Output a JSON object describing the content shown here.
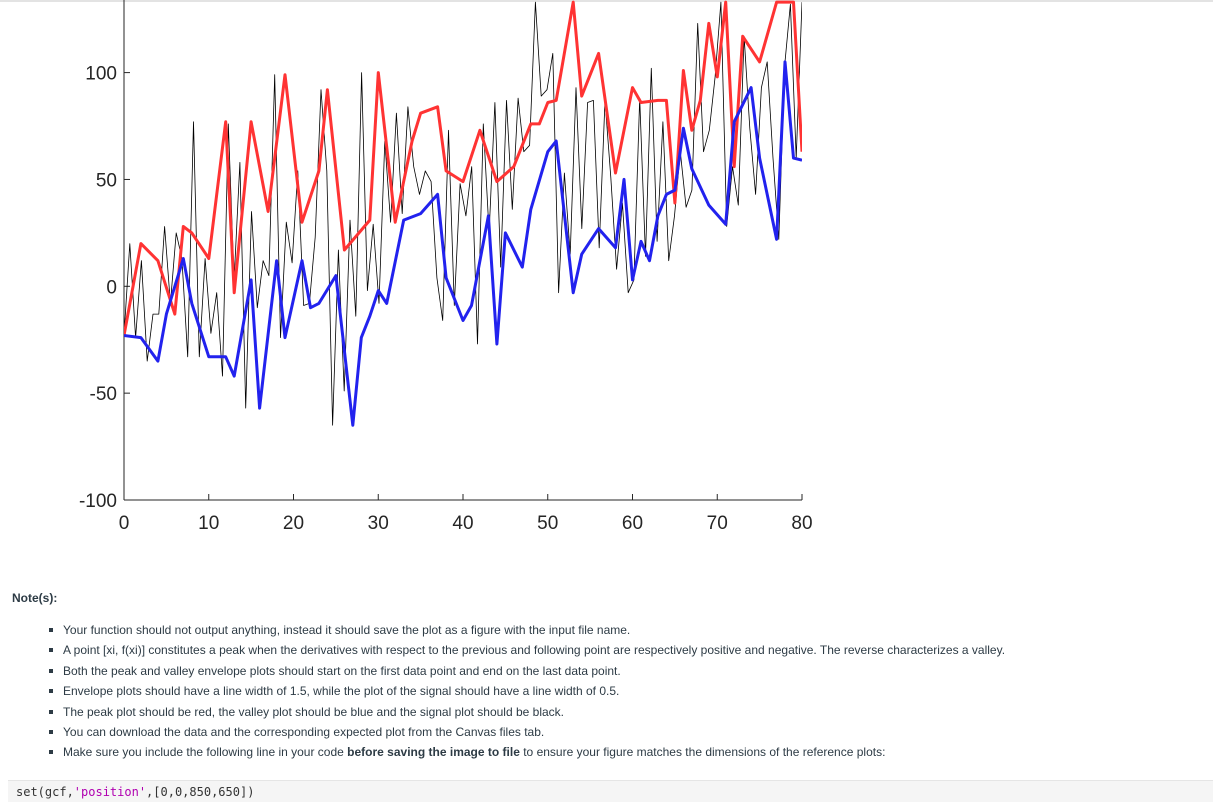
{
  "chart_data": {
    "type": "line",
    "title": "",
    "xlabel": "",
    "ylabel": "",
    "xlim": [
      0,
      80
    ],
    "ylim": [
      -100,
      130
    ],
    "xticks": [
      0,
      10,
      20,
      30,
      40,
      50,
      60,
      70,
      80
    ],
    "yticks": [
      -100,
      -50,
      0,
      50,
      100
    ],
    "x_tick_labels": [
      "0",
      "10",
      "20",
      "30",
      "40",
      "50",
      "60",
      "70",
      "80"
    ],
    "y_tick_labels": [
      "-100",
      "-50",
      "0",
      "50",
      "100"
    ],
    "grid": false,
    "series": [
      {
        "role": "signal",
        "color": "#000000",
        "width": 0.5,
        "values": [
          -23,
          20,
          -24,
          12,
          -35,
          -13,
          -13,
          28,
          -8,
          25,
          13,
          -33,
          77,
          -33,
          13,
          -22,
          -3,
          -42,
          76,
          3,
          58,
          -57,
          35,
          -10,
          12,
          5,
          99,
          -24,
          30,
          11,
          54,
          -9,
          -8,
          23,
          92,
          54,
          -65,
          17,
          -49,
          31,
          -14,
          100,
          -2,
          29,
          -8,
          68,
          30,
          81,
          34,
          84,
          56,
          43,
          54,
          49,
          4,
          -16,
          73,
          -9,
          48,
          33,
          56,
          -27,
          76,
          25,
          86,
          9,
          87,
          36,
          88,
          63,
          66,
          133,
          89,
          92,
          109,
          -3,
          53,
          15,
          93,
          27,
          86,
          87,
          18,
          87,
          51,
          8,
          39,
          -3,
          3,
          88,
          14,
          102,
          21,
          77,
          12,
          33,
          63,
          37,
          45,
          123,
          63,
          73,
          98,
          133,
          28,
          56,
          38,
          117,
          74,
          43,
          93,
          105,
          60,
          22,
          103,
          132,
          60,
          133
        ]
      },
      {
        "role": "peak-envelope",
        "color": "#ff3333",
        "width": 1.5,
        "x": [
          0,
          2,
          4,
          6,
          7,
          8,
          10,
          12,
          13,
          15,
          17,
          19,
          21,
          23,
          24,
          26,
          29,
          30,
          32,
          34,
          35,
          37,
          38,
          40,
          42,
          44,
          46,
          48,
          49,
          50,
          51,
          53,
          54,
          56,
          58,
          60,
          61,
          63,
          64,
          65,
          66,
          67,
          68,
          69,
          70,
          71,
          72,
          73,
          75,
          77,
          78,
          79,
          80
        ],
        "y": [
          -23,
          20,
          12,
          -13,
          28,
          25,
          13,
          77,
          -3,
          77,
          35,
          99,
          30,
          54,
          92,
          17,
          31,
          100,
          30,
          68,
          81,
          84,
          54,
          49,
          73,
          49,
          56,
          76,
          76,
          86,
          87,
          133,
          89,
          109,
          53,
          93,
          86,
          87,
          87,
          39,
          101,
          73,
          87,
          123,
          98,
          133,
          56,
          117,
          105,
          133,
          133,
          133,
          63
        ]
      },
      {
        "role": "valley-envelope",
        "color": "#2222ee",
        "width": 1.5,
        "x": [
          0,
          2,
          4,
          5,
          7,
          8,
          10,
          12,
          13,
          15,
          16,
          18,
          19,
          21,
          22,
          23,
          25,
          27,
          28,
          29,
          30,
          31,
          33,
          35,
          37,
          38,
          40,
          41,
          43,
          44,
          45,
          47,
          48,
          50,
          51,
          53,
          54,
          56,
          58,
          59,
          60,
          61,
          62,
          63,
          64,
          65,
          66,
          67,
          69,
          71,
          72,
          74,
          75,
          77,
          78,
          79,
          80
        ],
        "y": [
          -23,
          -24,
          -35,
          -13,
          13,
          -8,
          -33,
          -33,
          -42,
          3,
          -57,
          12,
          -24,
          12,
          -10,
          -8,
          5,
          -65,
          -24,
          -14,
          -2,
          -8,
          31,
          34,
          43,
          4,
          -16,
          -9,
          33,
          -27,
          25,
          9,
          36,
          63,
          68,
          -3,
          15,
          27,
          18,
          50,
          3,
          21,
          12,
          33,
          43,
          45,
          74,
          55,
          38,
          29,
          77,
          93,
          60,
          22,
          105,
          60,
          59
        ]
      }
    ]
  },
  "notes": {
    "heading": "Note(s):",
    "items": [
      "Your function should not output anything, instead it should save the plot as a figure with the input file name.",
      "A point [xi, f(xi)] constitutes a peak when the derivatives with respect to the previous and following point are respectively positive and negative. The reverse characterizes a valley.",
      "Both the peak and valley envelope plots should start on the first data point and end on the last data point.",
      "Envelope plots should have a line width of 1.5, while the plot of the signal should have a line width of 0.5.",
      "The peak plot should be red, the valley plot should be blue and the signal plot should be black.",
      "You can download the data and the corresponding expected plot from the Canvas files tab."
    ],
    "last_item": {
      "before": "Make sure you include the following line in your code ",
      "bold": "before saving the image to file",
      "after": " to ensure your figure matches the dimensions of the reference plots:"
    }
  },
  "code": {
    "prefix": "set(gcf,",
    "string": "'position'",
    "suffix": ",[0,0,850,650])"
  }
}
